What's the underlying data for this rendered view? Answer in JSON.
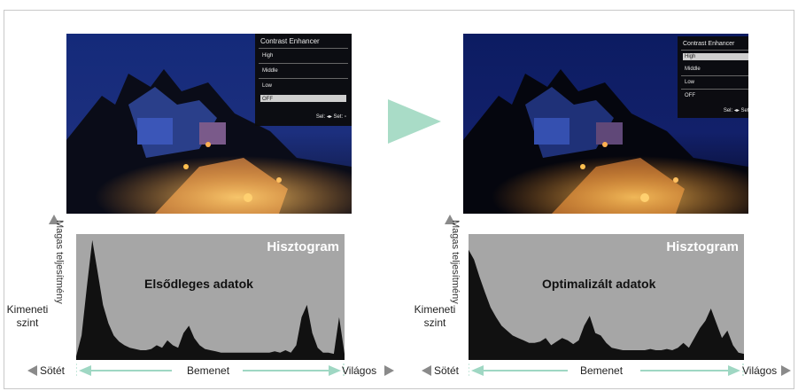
{
  "menu": {
    "title": "Contrast Enhancer",
    "items": [
      "High",
      "Middle",
      "Low",
      "OFF"
    ],
    "footer": "Sel: ◂▸  Set: ▫"
  },
  "panels": [
    {
      "histogram_title": "Hisztogram",
      "caption": "Elsődleges adatok",
      "selected_item": "OFF"
    },
    {
      "histogram_title": "Hisztogram",
      "caption": "Optimalizált adatok",
      "selected_item": "High"
    }
  ],
  "labels": {
    "performance": "Magas teljesítmény",
    "output_level": "Kimeneti szint",
    "dark": "Sötét",
    "input": "Bemenet",
    "light": "Világos"
  },
  "colors": {
    "arrow": "#a9dcc7",
    "input_arrow": "#9fd7c3",
    "histogram_bg": "#a6a6a6",
    "histogram_fill": "#111111"
  },
  "chart_data": [
    {
      "type": "area",
      "title": "Hisztogram",
      "annotation": "Elsődleges adatok",
      "xlabel": "Bemenet",
      "ylabel": "Kimeneti szint",
      "x": [
        0,
        2,
        4,
        6,
        8,
        10,
        12,
        14,
        16,
        18,
        20,
        22,
        24,
        26,
        28,
        30,
        32,
        34,
        36,
        38,
        40,
        42,
        44,
        46,
        48,
        50,
        52,
        54,
        56,
        58,
        60,
        62,
        64,
        66,
        68,
        70,
        72,
        74,
        76,
        78,
        80,
        82,
        84,
        86,
        88,
        90,
        92,
        94,
        96,
        98,
        100
      ],
      "values": [
        0.03,
        0.2,
        0.6,
        0.98,
        0.72,
        0.45,
        0.3,
        0.2,
        0.15,
        0.12,
        0.1,
        0.09,
        0.08,
        0.08,
        0.09,
        0.12,
        0.1,
        0.16,
        0.12,
        0.1,
        0.22,
        0.28,
        0.18,
        0.12,
        0.09,
        0.08,
        0.07,
        0.06,
        0.06,
        0.06,
        0.06,
        0.06,
        0.06,
        0.06,
        0.06,
        0.06,
        0.06,
        0.07,
        0.06,
        0.08,
        0.06,
        0.12,
        0.35,
        0.45,
        0.22,
        0.1,
        0.06,
        0.06,
        0.05,
        0.35,
        0.05
      ],
      "xlim": [
        0,
        100
      ],
      "ylim": [
        0,
        1
      ]
    },
    {
      "type": "area",
      "title": "Hisztogram",
      "annotation": "Optimalizált adatok",
      "xlabel": "Bemenet",
      "ylabel": "Kimeneti szint",
      "x": [
        0,
        2,
        4,
        6,
        8,
        10,
        12,
        14,
        16,
        18,
        20,
        22,
        24,
        26,
        28,
        30,
        32,
        34,
        36,
        38,
        40,
        42,
        44,
        46,
        48,
        50,
        52,
        54,
        56,
        58,
        60,
        62,
        64,
        66,
        68,
        70,
        72,
        74,
        76,
        78,
        80,
        82,
        84,
        86,
        88,
        90,
        92,
        94,
        96,
        98,
        100
      ],
      "values": [
        0.9,
        0.82,
        0.68,
        0.55,
        0.43,
        0.35,
        0.28,
        0.24,
        0.2,
        0.18,
        0.16,
        0.14,
        0.14,
        0.15,
        0.18,
        0.12,
        0.15,
        0.18,
        0.16,
        0.13,
        0.16,
        0.28,
        0.36,
        0.22,
        0.2,
        0.14,
        0.1,
        0.09,
        0.08,
        0.08,
        0.08,
        0.08,
        0.08,
        0.09,
        0.08,
        0.08,
        0.09,
        0.08,
        0.1,
        0.14,
        0.1,
        0.18,
        0.26,
        0.32,
        0.42,
        0.3,
        0.18,
        0.24,
        0.12,
        0.06,
        0.05
      ],
      "xlim": [
        0,
        100
      ],
      "ylim": [
        0,
        1
      ]
    }
  ]
}
